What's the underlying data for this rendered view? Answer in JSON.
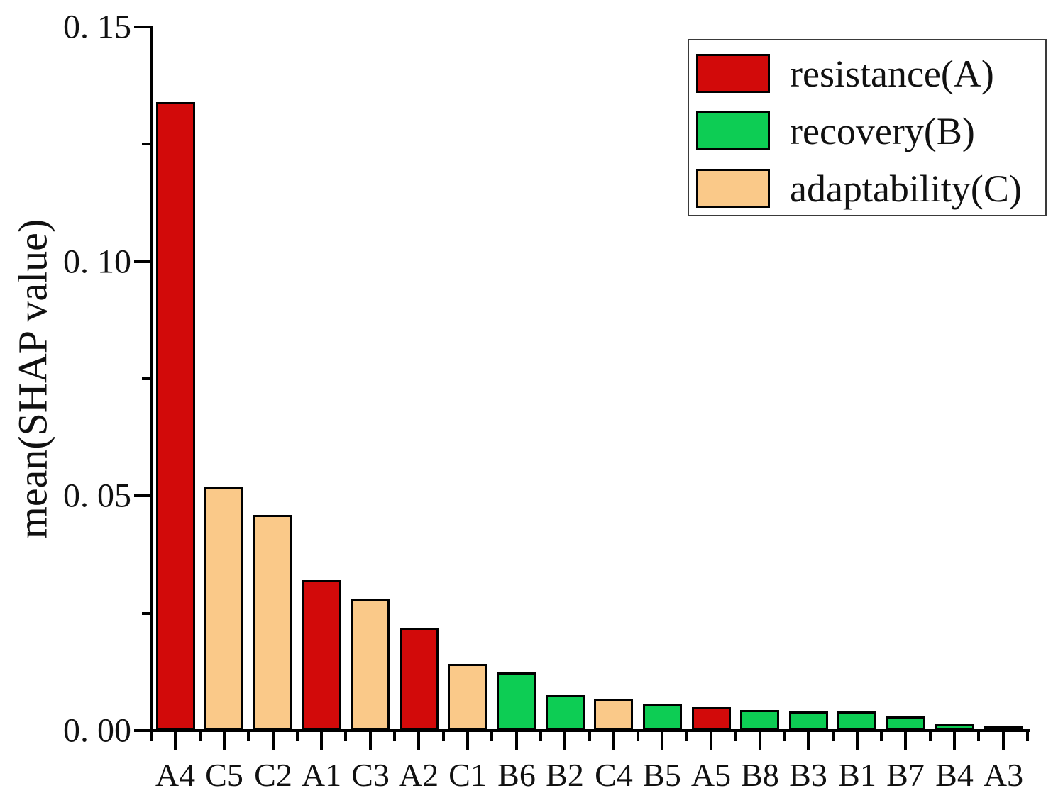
{
  "chart_data": {
    "type": "bar",
    "title": "",
    "xlabel": "",
    "ylabel": "mean(SHAP value)",
    "categories": [
      "A4",
      "C5",
      "C2",
      "A1",
      "C3",
      "A2",
      "C1",
      "B6",
      "B2",
      "C4",
      "B5",
      "A5",
      "B8",
      "B3",
      "B1",
      "B7",
      "B4",
      "A3"
    ],
    "values": [
      0.134,
      0.052,
      0.046,
      0.032,
      0.028,
      0.022,
      0.0142,
      0.0124,
      0.0075,
      0.0068,
      0.0056,
      0.005,
      0.0044,
      0.0041,
      0.0041,
      0.003,
      0.0014,
      0.0011
    ],
    "bar_groups": [
      "A",
      "C",
      "C",
      "A",
      "C",
      "A",
      "C",
      "B",
      "B",
      "C",
      "B",
      "A",
      "B",
      "B",
      "B",
      "B",
      "B",
      "A"
    ],
    "group_colors": {
      "A": "#D20A0A",
      "B": "#0DCD54",
      "C": "#FAC989"
    },
    "bar_edge_color": "#000000",
    "ylim": [
      0,
      0.15
    ],
    "ytick_values": [
      0,
      0.05,
      0.1,
      0.15
    ],
    "ytick_labels": [
      "0. 00",
      "0. 05",
      "0. 10",
      "0. 15"
    ],
    "yminor_values": [
      0.025,
      0.075,
      0.125
    ],
    "grid": false,
    "legend": {
      "position": "top-right",
      "entries": [
        {
          "label": "resistance(A)",
          "color": "#D20A0A",
          "group": "A"
        },
        {
          "label": "recovery(B)",
          "color": "#0DCD54",
          "group": "B"
        },
        {
          "label": "adaptability(C)",
          "color": "#FAC989",
          "group": "C"
        }
      ]
    }
  }
}
